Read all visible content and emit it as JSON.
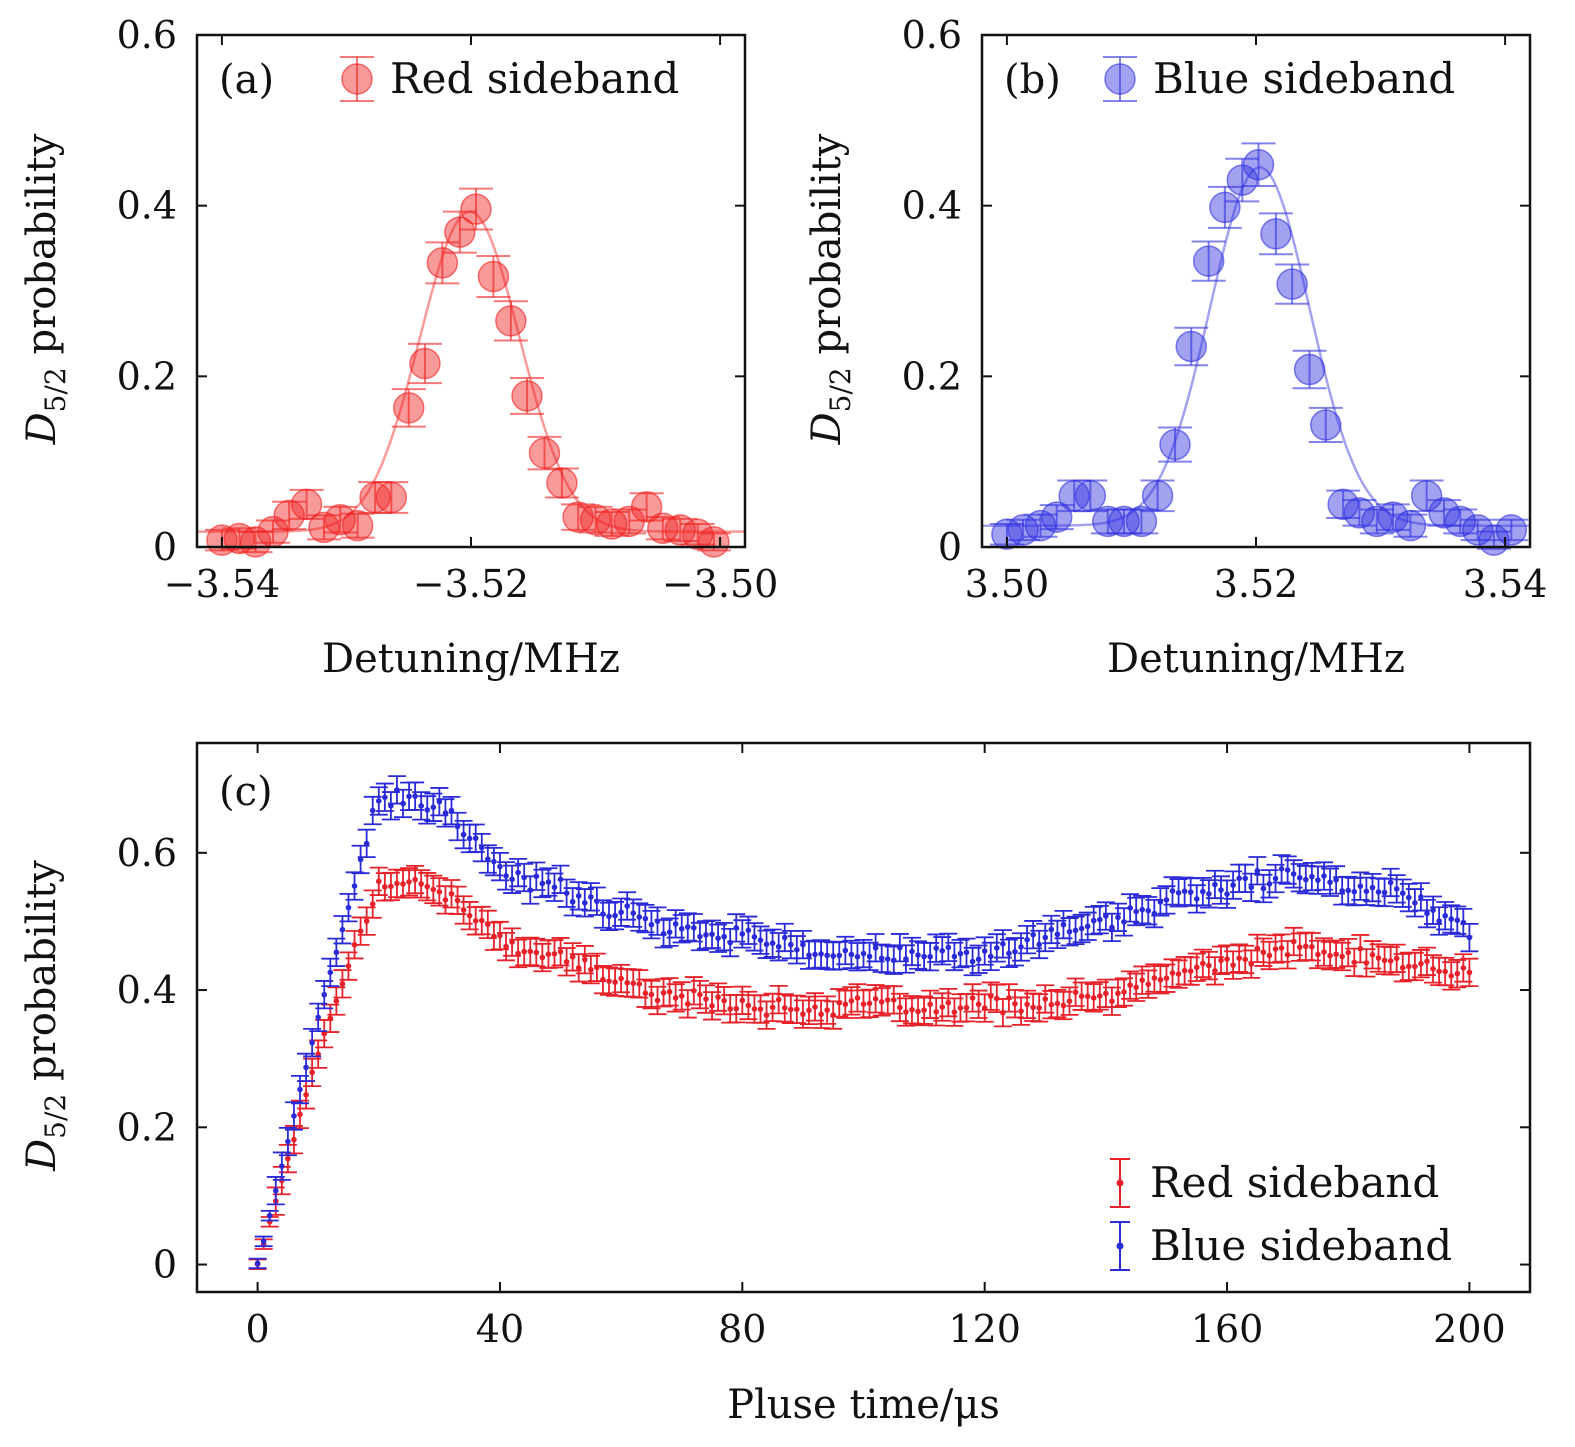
{
  "chart_data": [
    {
      "type": "scatter",
      "panel_label": "(a)",
      "xlabel": "Detuning/MHz",
      "ylabel_main": "D",
      "ylabel_sub": "5/2",
      "ylabel_rest": " probability",
      "xlim": [
        -3.542,
        -3.498
      ],
      "ylim": [
        0,
        0.6
      ],
      "xticks": [
        -3.54,
        -3.52,
        -3.5
      ],
      "xtick_labels": [
        "−3.54",
        "−3.52",
        "−3.50"
      ],
      "yticks": [
        0,
        0.2,
        0.4,
        0.6
      ],
      "ytick_labels": [
        "0",
        "0.2",
        "0.4",
        "0.6"
      ],
      "legend": {
        "position": "top-right"
      },
      "series": [
        {
          "name": "Red sideband",
          "color": "#f02020",
          "marker": "circle",
          "x": [
            -3.54,
            -3.5386,
            -3.5373,
            -3.5359,
            -3.5346,
            -3.5332,
            -3.5318,
            -3.5305,
            -3.5291,
            -3.5277,
            -3.5264,
            -3.525,
            -3.5237,
            -3.5223,
            -3.5209,
            -3.5196,
            -3.5182,
            -3.5168,
            -3.5155,
            -3.5141,
            -3.5127,
            -3.5114,
            -3.51,
            -3.5087,
            -3.5073,
            -3.5059,
            -3.5046,
            -3.5032,
            -3.5018,
            -3.5005
          ],
          "y": [
            0.008,
            0.01,
            0.006,
            0.018,
            0.037,
            0.05,
            0.023,
            0.032,
            0.025,
            0.058,
            0.058,
            0.163,
            0.215,
            0.333,
            0.369,
            0.396,
            0.317,
            0.265,
            0.177,
            0.11,
            0.075,
            0.035,
            0.032,
            0.027,
            0.03,
            0.047,
            0.022,
            0.02,
            0.015,
            0.006
          ],
          "yerr": [
            0.012,
            0.012,
            0.012,
            0.013,
            0.016,
            0.017,
            0.014,
            0.015,
            0.014,
            0.018,
            0.018,
            0.022,
            0.023,
            0.024,
            0.024,
            0.024,
            0.024,
            0.023,
            0.021,
            0.019,
            0.017,
            0.015,
            0.015,
            0.014,
            0.014,
            0.016,
            0.013,
            0.013,
            0.012,
            0.01
          ],
          "fit_center": -3.5201,
          "fit_amplitude": 0.375,
          "fit_sigma": 0.004,
          "fit_offset": 0.018
        }
      ]
    },
    {
      "type": "scatter",
      "panel_label": "(b)",
      "xlabel": "Detuning/MHz",
      "ylabel_main": "D",
      "ylabel_sub": "5/2",
      "ylabel_rest": " probability",
      "xlim": [
        3.498,
        3.542
      ],
      "ylim": [
        0,
        0.6
      ],
      "xticks": [
        3.5,
        3.52,
        3.54
      ],
      "xtick_labels": [
        "3.50",
        "3.52",
        "3.54"
      ],
      "yticks": [
        0,
        0.2,
        0.4,
        0.6
      ],
      "ytick_labels": [
        "0",
        "0.2",
        "0.4",
        "0.6"
      ],
      "legend": {
        "position": "top-right"
      },
      "series": [
        {
          "name": "Blue sideband",
          "color": "#3030e0",
          "marker": "circle",
          "x": [
            3.5,
            3.5013,
            3.5027,
            3.504,
            3.5054,
            3.5067,
            3.5081,
            3.5094,
            3.5108,
            3.5121,
            3.5135,
            3.5148,
            3.5162,
            3.5175,
            3.5189,
            3.5202,
            3.5216,
            3.5229,
            3.5243,
            3.5256,
            3.527,
            3.5283,
            3.5297,
            3.531,
            3.5324,
            3.5337,
            3.5351,
            3.5364,
            3.5378,
            3.5391,
            3.5405
          ],
          "y": [
            0.015,
            0.02,
            0.025,
            0.035,
            0.06,
            0.06,
            0.03,
            0.03,
            0.03,
            0.06,
            0.12,
            0.235,
            0.335,
            0.398,
            0.43,
            0.448,
            0.367,
            0.308,
            0.208,
            0.143,
            0.05,
            0.04,
            0.03,
            0.035,
            0.025,
            0.06,
            0.04,
            0.03,
            0.02,
            0.008,
            0.02
          ],
          "yerr": [
            0.012,
            0.012,
            0.013,
            0.014,
            0.018,
            0.018,
            0.014,
            0.014,
            0.014,
            0.018,
            0.02,
            0.022,
            0.023,
            0.024,
            0.025,
            0.025,
            0.024,
            0.023,
            0.022,
            0.02,
            0.016,
            0.015,
            0.014,
            0.015,
            0.013,
            0.018,
            0.015,
            0.014,
            0.012,
            0.01,
            0.012
          ],
          "fit_center": 3.5203,
          "fit_amplitude": 0.42,
          "fit_sigma": 0.004,
          "fit_offset": 0.025
        }
      ]
    },
    {
      "type": "scatter",
      "panel_label": "(c)",
      "xlabel": "Pluse time/μs",
      "ylabel_main": "D",
      "ylabel_sub": "5/2",
      "ylabel_rest": " probability",
      "xlim": [
        -10,
        210
      ],
      "ylim": [
        -0.04,
        0.76
      ],
      "xticks": [
        0,
        40,
        80,
        120,
        160,
        200
      ],
      "xtick_labels": [
        "0",
        "40",
        "80",
        "120",
        "160",
        "200"
      ],
      "yticks": [
        0,
        0.2,
        0.4,
        0.6
      ],
      "ytick_labels": [
        "0",
        "0.2",
        "0.4",
        "0.6"
      ],
      "legend": {
        "position": "bottom-right"
      },
      "series": [
        {
          "name": "Red sideband",
          "color": "#e8202a",
          "marker": "dot-errorbar",
          "x": [
            0,
            10,
            20,
            30,
            40,
            50,
            60,
            70,
            80,
            90,
            100,
            110,
            120,
            130,
            140,
            150,
            160,
            170,
            180,
            190,
            200
          ],
          "y": [
            0.0,
            0.31,
            0.56,
            0.55,
            0.47,
            0.45,
            0.41,
            0.39,
            0.38,
            0.37,
            0.38,
            0.37,
            0.38,
            0.38,
            0.39,
            0.42,
            0.44,
            0.46,
            0.45,
            0.44,
            0.42
          ],
          "yerr": 0.02,
          "noise": 0.014
        },
        {
          "name": "Blue sideband",
          "color": "#2a2ad8",
          "marker": "dot-errorbar",
          "x": [
            0,
            10,
            20,
            30,
            40,
            50,
            60,
            70,
            80,
            90,
            100,
            110,
            120,
            130,
            140,
            150,
            160,
            170,
            180,
            190,
            200
          ],
          "y": [
            0.0,
            0.36,
            0.68,
            0.67,
            0.57,
            0.55,
            0.51,
            0.49,
            0.48,
            0.46,
            0.45,
            0.45,
            0.45,
            0.48,
            0.5,
            0.53,
            0.55,
            0.57,
            0.55,
            0.54,
            0.49
          ],
          "yerr": 0.02,
          "noise": 0.016
        }
      ]
    }
  ]
}
